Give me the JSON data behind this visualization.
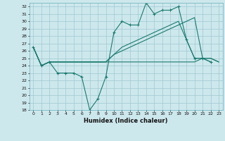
{
  "xlabel": "Humidex (Indice chaleur)",
  "bg_color": "#cde8ed",
  "grid_color": "#9fc8d0",
  "line_color": "#1a7a6e",
  "xlim": [
    -0.5,
    23.5
  ],
  "ylim": [
    18,
    32.5
  ],
  "yticks": [
    18,
    19,
    20,
    21,
    22,
    23,
    24,
    25,
    26,
    27,
    28,
    29,
    30,
    31,
    32
  ],
  "xticks": [
    0,
    1,
    2,
    3,
    4,
    5,
    6,
    7,
    8,
    9,
    10,
    11,
    12,
    13,
    14,
    15,
    16,
    17,
    18,
    19,
    20,
    21,
    22,
    23
  ],
  "series_zigzag": [
    26.5,
    24.0,
    24.5,
    23.0,
    23.0,
    23.0,
    22.5,
    18.0,
    19.5,
    22.5,
    28.5,
    30.0,
    29.5,
    29.5,
    32.5,
    31.0,
    31.5,
    31.5,
    32.0,
    27.5,
    25.0,
    25.0,
    24.5,
    null
  ],
  "series_upper": [
    26.5,
    24.0,
    24.5,
    24.5,
    24.5,
    24.5,
    24.5,
    24.5,
    24.5,
    24.5,
    25.5,
    26.0,
    26.5,
    27.0,
    27.5,
    28.0,
    28.5,
    29.0,
    29.5,
    30.0,
    30.5,
    25.0,
    25.0,
    24.5
  ],
  "series_lower": [
    26.5,
    24.0,
    24.5,
    24.5,
    24.5,
    24.5,
    24.5,
    24.5,
    24.5,
    24.5,
    24.5,
    24.5,
    24.5,
    24.5,
    24.5,
    24.5,
    24.5,
    24.5,
    24.5,
    24.5,
    24.5,
    25.0,
    25.0,
    24.5
  ],
  "series_mid": [
    26.5,
    24.0,
    24.5,
    24.5,
    24.5,
    24.5,
    24.5,
    24.5,
    24.5,
    24.5,
    25.5,
    26.5,
    27.0,
    27.5,
    28.0,
    28.5,
    29.0,
    29.5,
    30.0,
    27.5,
    25.0,
    25.0,
    24.5,
    null
  ]
}
